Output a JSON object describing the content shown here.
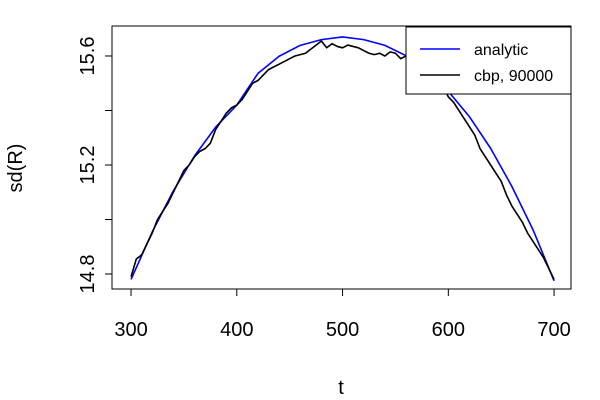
{
  "chart_data": {
    "type": "line",
    "title": "",
    "xlabel": "t",
    "ylabel": "sd(R)",
    "xlim": [
      282,
      716
    ],
    "ylim": [
      14.745,
      15.71
    ],
    "x_ticks": [
      300,
      400,
      500,
      600,
      700
    ],
    "x_tick_labels": [
      "300",
      "400",
      "500",
      "600",
      "700"
    ],
    "y_ticks": [
      14.8,
      15.2,
      15.6
    ],
    "y_tick_labels": [
      "14.8",
      "15.2",
      "15.6"
    ],
    "y_minor_ticks": [
      15.0,
      15.4
    ],
    "grid": false,
    "legend_position": "top-right",
    "series": [
      {
        "name": "analytic",
        "color": "#0000ff",
        "x": [
          300,
          320,
          340,
          360,
          380,
          400,
          420,
          440,
          460,
          480,
          500,
          520,
          540,
          560,
          580,
          600,
          620,
          640,
          660,
          680,
          700
        ],
        "y": [
          14.78,
          14.954,
          15.105,
          15.233,
          15.339,
          15.42,
          15.536,
          15.599,
          15.639,
          15.66,
          15.67,
          15.66,
          15.639,
          15.601,
          15.546,
          15.47,
          15.377,
          15.261,
          15.122,
          14.963,
          14.775
        ]
      },
      {
        "name": "cbp, 90000",
        "color": "#000000",
        "x": [
          300,
          305,
          310,
          315,
          320,
          325,
          330,
          335,
          340,
          345,
          350,
          355,
          360,
          365,
          370,
          375,
          380,
          385,
          390,
          395,
          400,
          405,
          410,
          415,
          420,
          425,
          430,
          435,
          440,
          445,
          450,
          455,
          460,
          465,
          470,
          475,
          480,
          485,
          490,
          495,
          500,
          505,
          510,
          515,
          520,
          525,
          530,
          535,
          540,
          545,
          550,
          555,
          560,
          565,
          570,
          575,
          580,
          585,
          590,
          595,
          600,
          605,
          610,
          615,
          620,
          625,
          630,
          635,
          640,
          645,
          650,
          655,
          660,
          665,
          670,
          675,
          680,
          685,
          690,
          695,
          700
        ],
        "y": [
          14.79,
          14.855,
          14.87,
          14.91,
          14.95,
          15.0,
          15.03,
          15.06,
          15.1,
          15.14,
          15.18,
          15.2,
          15.23,
          15.25,
          15.26,
          15.28,
          15.33,
          15.36,
          15.39,
          15.41,
          15.42,
          15.44,
          15.47,
          15.5,
          15.51,
          15.53,
          15.55,
          15.56,
          15.57,
          15.58,
          15.59,
          15.6,
          15.605,
          15.61,
          15.625,
          15.64,
          15.655,
          15.63,
          15.645,
          15.635,
          15.63,
          15.64,
          15.635,
          15.63,
          15.62,
          15.61,
          15.605,
          15.61,
          15.6,
          15.615,
          15.61,
          15.59,
          15.6,
          15.595,
          15.58,
          15.555,
          15.54,
          15.52,
          15.51,
          15.49,
          15.45,
          15.43,
          15.4,
          15.37,
          15.34,
          15.31,
          15.26,
          15.23,
          15.2,
          15.17,
          15.14,
          15.09,
          15.05,
          15.02,
          14.99,
          14.95,
          14.92,
          14.89,
          14.86,
          14.82,
          14.78
        ]
      }
    ]
  }
}
